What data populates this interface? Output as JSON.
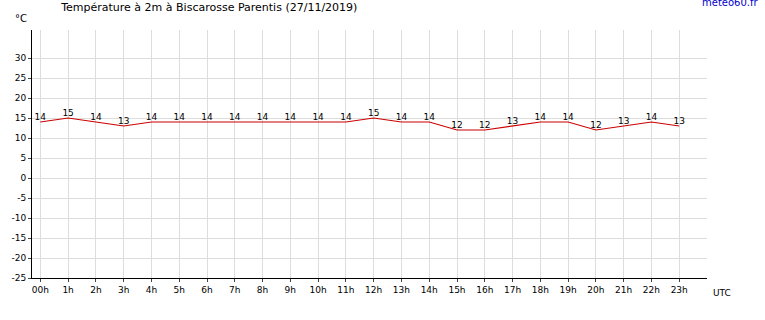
{
  "chart_data": {
    "type": "line",
    "title": "Température à 2m à Biscarosse Parentis (27/11/2019)",
    "xlabel": "UTC",
    "ylabel": "°C",
    "annotations": [
      "meteo60.fr"
    ],
    "categories": [
      "00h",
      "1h",
      "2h",
      "3h",
      "4h",
      "5h",
      "6h",
      "7h",
      "8h",
      "9h",
      "10h",
      "11h",
      "12h",
      "13h",
      "14h",
      "15h",
      "16h",
      "17h",
      "18h",
      "19h",
      "20h",
      "21h",
      "22h",
      "23h"
    ],
    "values": [
      14,
      15,
      14,
      13,
      14,
      14,
      14,
      14,
      14,
      14,
      14,
      14,
      15,
      14,
      14,
      12,
      12,
      13,
      14,
      14,
      12,
      13,
      14,
      13
    ],
    "color": "#cc0000",
    "ylim": [
      -25,
      37
    ],
    "yticks": [
      -25,
      -20,
      -15,
      -10,
      -5,
      0,
      5,
      10,
      15,
      20,
      25,
      30
    ],
    "grid": true,
    "data_labels": true
  }
}
